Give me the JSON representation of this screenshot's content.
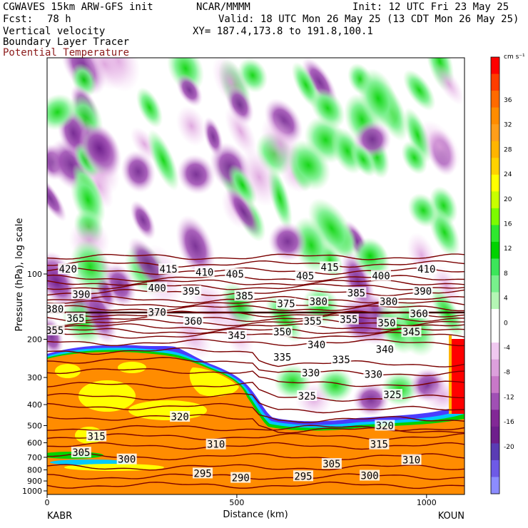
{
  "header": {
    "model": "CGWAVES 15km ARW-GFS init",
    "fcst_label": "Fcst:",
    "fcst_value": "78 h",
    "center": "NCAR/MMMM",
    "init": "Init: 12 UTC Fri 23 May 25",
    "valid": "Valid: 18 UTC Mon 26 May 25 (13 CDT Mon 26 May 25)",
    "xy": "XY= 187.4,173.8 to 191.8,100.1",
    "field1": "Vertical velocity",
    "field2": "Boundary Layer Tracer",
    "field3": "Potential Temperature",
    "field3_color": "#8b1a1a"
  },
  "chart_data": {
    "type": "heatmap",
    "title": "Vertical velocity",
    "ylabel": "Pressure (hPa), log scale",
    "xlabel": "Distance (km)",
    "y_scale": "log",
    "y_ticks": [
      100,
      200,
      300,
      400,
      500,
      600,
      700,
      800,
      900,
      1000
    ],
    "x_ticks": [
      0,
      500,
      1000
    ],
    "xlim": [
      0,
      1100
    ],
    "x_endpoints": [
      "KABR",
      "KOUN"
    ],
    "colorbar": {
      "unit": "cm s⁻¹",
      "ticks": [
        36,
        32,
        28,
        24,
        20,
        16,
        12,
        8,
        4,
        0,
        -4,
        -8,
        -12,
        -16,
        -20
      ],
      "colors": [
        "#ff0000",
        "#ff3c00",
        "#ff6a00",
        "#ff8c00",
        "#ff9e1a",
        "#ffb400",
        "#ffd200",
        "#ffff00",
        "#c8ff00",
        "#7cfc00",
        "#2ee82e",
        "#00d200",
        "#3ce65a",
        "#78f08c",
        "#b4f5b4",
        "#ffffff",
        "#ffffff",
        "#f0c8f0",
        "#dca0dc",
        "#c878c8",
        "#a050b4",
        "#822896",
        "#6e1e8c",
        "#5a3cb4",
        "#6e5ae6",
        "#8c8cff"
      ]
    },
    "series": [
      {
        "name": "Potential Temperature",
        "contour_labels": [
          {
            "label": "420",
            "x": 55,
            "p": 95
          },
          {
            "label": "415",
            "x": 320,
            "p": 95
          },
          {
            "label": "410",
            "x": 415,
            "p": 98
          },
          {
            "label": "405",
            "x": 495,
            "p": 100
          },
          {
            "label": "415",
            "x": 745,
            "p": 93
          },
          {
            "label": "410",
            "x": 1000,
            "p": 95
          },
          {
            "label": "405",
            "x": 680,
            "p": 102
          },
          {
            "label": "400",
            "x": 290,
            "p": 116
          },
          {
            "label": "395",
            "x": 380,
            "p": 120
          },
          {
            "label": "400",
            "x": 880,
            "p": 102
          },
          {
            "label": "390",
            "x": 90,
            "p": 124
          },
          {
            "label": "385",
            "x": 520,
            "p": 126
          },
          {
            "label": "385",
            "x": 815,
            "p": 122
          },
          {
            "label": "390",
            "x": 990,
            "p": 120
          },
          {
            "label": "380",
            "x": 20,
            "p": 145
          },
          {
            "label": "375",
            "x": 630,
            "p": 137
          },
          {
            "label": "380",
            "x": 715,
            "p": 134
          },
          {
            "label": "380",
            "x": 900,
            "p": 134
          },
          {
            "label": "370",
            "x": 290,
            "p": 150
          },
          {
            "label": "365",
            "x": 75,
            "p": 160
          },
          {
            "label": "360",
            "x": 385,
            "p": 165
          },
          {
            "label": "355",
            "x": 700,
            "p": 165
          },
          {
            "label": "355",
            "x": 795,
            "p": 162
          },
          {
            "label": "350",
            "x": 895,
            "p": 168
          },
          {
            "label": "360",
            "x": 980,
            "p": 152
          },
          {
            "label": "355",
            "x": 20,
            "p": 182
          },
          {
            "label": "345",
            "x": 500,
            "p": 192
          },
          {
            "label": "350",
            "x": 620,
            "p": 185
          },
          {
            "label": "345",
            "x": 960,
            "p": 185
          },
          {
            "label": "340",
            "x": 710,
            "p": 212
          },
          {
            "label": "340",
            "x": 890,
            "p": 222
          },
          {
            "label": "335",
            "x": 620,
            "p": 242
          },
          {
            "label": "335",
            "x": 775,
            "p": 248
          },
          {
            "label": "330",
            "x": 695,
            "p": 285
          },
          {
            "label": "330",
            "x": 860,
            "p": 290
          },
          {
            "label": "325",
            "x": 685,
            "p": 365
          },
          {
            "label": "325",
            "x": 910,
            "p": 360
          },
          {
            "label": "320",
            "x": 350,
            "p": 455
          },
          {
            "label": "320",
            "x": 890,
            "p": 500
          },
          {
            "label": "315",
            "x": 130,
            "p": 560
          },
          {
            "label": "315",
            "x": 875,
            "p": 610
          },
          {
            "label": "310",
            "x": 445,
            "p": 610
          },
          {
            "label": "310",
            "x": 960,
            "p": 720
          },
          {
            "label": "305",
            "x": 90,
            "p": 665
          },
          {
            "label": "305",
            "x": 750,
            "p": 750
          },
          {
            "label": "300",
            "x": 210,
            "p": 715
          },
          {
            "label": "300",
            "x": 850,
            "p": 850
          },
          {
            "label": "295",
            "x": 410,
            "p": 830
          },
          {
            "label": "290",
            "x": 510,
            "p": 870
          },
          {
            "label": "295",
            "x": 675,
            "p": 855
          }
        ]
      }
    ],
    "grid": false,
    "legend": "right colorbar"
  }
}
